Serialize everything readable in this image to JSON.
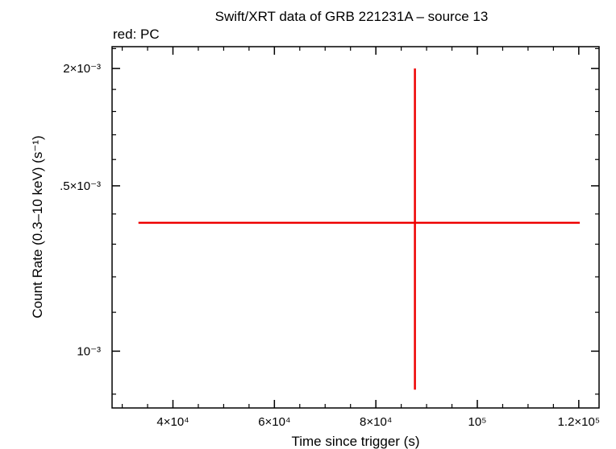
{
  "chart_data": {
    "type": "scatter",
    "title": "Swift/XRT data of GRB 221231A – source 13",
    "subtitle": "red: PC",
    "xlabel": "Time since trigger (s)",
    "ylabel": "Count Rate (0.3–10 keV) (s⁻¹)",
    "x_scale": "linear",
    "y_scale": "log",
    "xlim": [
      28000,
      124000
    ],
    "ylim": [
      0.00087,
      0.00211
    ],
    "x_ticks": [
      {
        "value": 40000,
        "label": "4×10⁴"
      },
      {
        "value": 60000,
        "label": "6×10⁴"
      },
      {
        "value": 80000,
        "label": "8×10⁴"
      },
      {
        "value": 100000,
        "label": "10⁵"
      },
      {
        "value": 120000,
        "label": "1.2×10⁵"
      }
    ],
    "y_ticks": [
      {
        "value": 0.001,
        "label": "10⁻³"
      },
      {
        "value": 0.0015,
        "label": ".5×10⁻³"
      },
      {
        "value": 0.002,
        "label": "2×10⁻³"
      }
    ],
    "series": [
      {
        "color": "#ee0000",
        "points": [
          {
            "x": 87700,
            "y": 0.00137,
            "xerr": [
              33200,
              120200
            ],
            "yerr": [
              0.00091,
              0.002
            ]
          }
        ]
      }
    ]
  }
}
